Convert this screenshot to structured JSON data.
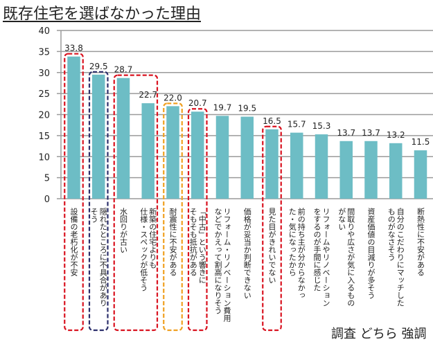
{
  "title": "既存住宅を選ばなかった理由",
  "footer_partial": "調査 どちら 強調",
  "colors": {
    "bar": "#6dbdc5",
    "grid": "#9a9a9a",
    "highlight_red": "#d9121f",
    "highlight_navy": "#2b2e6b",
    "highlight_orange": "#f0a020"
  },
  "chart_data": {
    "type": "bar",
    "title": "既存住宅を選ばなかった理由",
    "xlabel": "",
    "ylabel": "",
    "ylim": [
      0,
      40
    ],
    "yticks": [
      0,
      5,
      10,
      15,
      20,
      25,
      30,
      35,
      40
    ],
    "grid": true,
    "categories": [
      "設備の老朽化が不安",
      "隠れたところに不具合がありそう",
      "水回りが古い",
      "新築の住宅よりも仕様・スペックが低そう",
      "耐震性に不安がある",
      "「中古」という響きにそもそも抵抗がある",
      "リフォーム・リノベーション費用などでかえって割高になりそう",
      "価格が妥当か判断できない",
      "見た目がきれいでない",
      "前の持ち主が分からなかった・気になったから",
      "リフォームやリノベーションをするのが手間に感じた",
      "間取りや広さが気に入るものがない",
      "資産価値の目減りが多そう",
      "自分のこだわりにマッチしたものがなさそう",
      "断熱性に不安がある"
    ],
    "category_lines": [
      [
        "設備の老朽化が不安"
      ],
      [
        "隠れたところに不具合があり",
        "そう"
      ],
      [
        "水回りが古い"
      ],
      [
        "新築の住宅よりも",
        "仕様・スペックが低そう"
      ],
      [
        "耐震性に不安がある"
      ],
      [
        "「中古」という響きに",
        "そもそも抵抗がある"
      ],
      [
        "リフォーム・リノベーション費用",
        "などでかえって割高になりそう"
      ],
      [
        "価格が妥当か判断できない"
      ],
      [
        "見た目がきれいでない"
      ],
      [
        "前の持ち主が分からなかっ",
        "た・気になったから"
      ],
      [
        "リフォームやリノベーション",
        "をするのが手間に感じた"
      ],
      [
        "間取りや広さが気に入るもの",
        "がない"
      ],
      [
        "資産価値の目減りが多そう"
      ],
      [
        "自分のこだわりにマッチした",
        "ものがなさそう"
      ],
      [
        "断熱性に不安がある"
      ]
    ],
    "values": [
      33.8,
      29.5,
      28.7,
      22.7,
      22.0,
      20.7,
      19.7,
      19.5,
      16.5,
      15.7,
      15.3,
      13.7,
      13.7,
      13.2,
      11.5
    ],
    "value_labels": [
      "33.8",
      "29.5",
      "28.7",
      "22.7",
      "22.0",
      "20.7",
      "19.7",
      "19.5",
      "16.5",
      "15.7",
      "15.3",
      "13.7",
      "13.7",
      "13.2",
      "11.5"
    ],
    "highlight_groups": [
      {
        "name": "equipment-aging",
        "color": "red",
        "indices": [
          0
        ]
      },
      {
        "name": "hidden-defects",
        "color": "navy",
        "indices": [
          1
        ]
      },
      {
        "name": "water-and-spec",
        "color": "red",
        "indices": [
          2,
          3
        ]
      },
      {
        "name": "earthquake",
        "color": "orange",
        "indices": [
          4
        ]
      },
      {
        "name": "used-resistance",
        "color": "red",
        "indices": [
          5
        ]
      },
      {
        "name": "appearance",
        "color": "red",
        "indices": [
          8
        ]
      }
    ],
    "legend": "none"
  }
}
